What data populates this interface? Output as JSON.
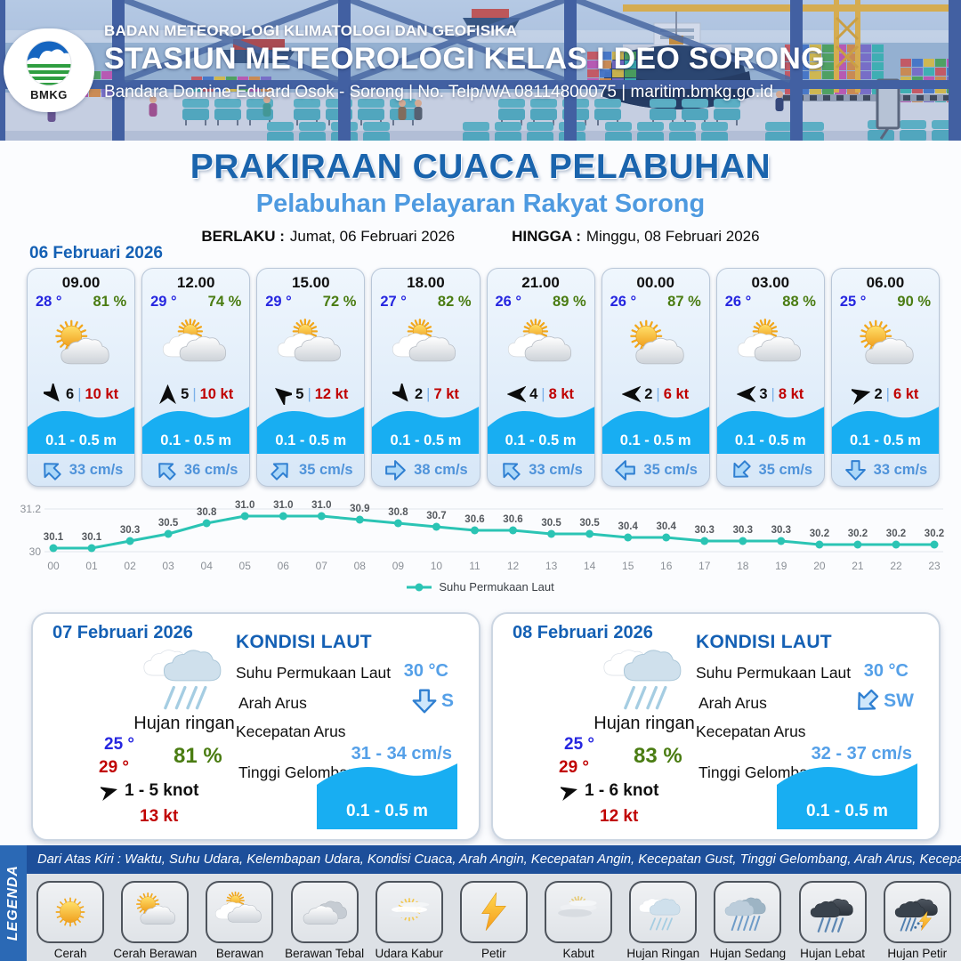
{
  "header": {
    "logo_text": "BMKG",
    "agency": "BADAN METEOROLOGI KLIMATOLOGI DAN GEOFISIKA",
    "station": "STASIUN METEOROLOGI KELAS I DEO SORONG",
    "contact": "Bandara Domine Eduard Osok - Sorong | No. Telp/WA 08114800075 | maritim.bmkg.go.id"
  },
  "title": {
    "main": "PRAKIRAAN CUACA PELABUHAN",
    "sub": "Pelabuhan Pelayaran Rakyat Sorong"
  },
  "validity": {
    "berlaku_label": "BERLAKU :",
    "berlaku": "Jumat, 06 Februari 2026",
    "hingga_label": "HINGGA :",
    "hingga": "Minggu, 08 Februari 2026"
  },
  "hourly": {
    "date": "06 Februari 2026",
    "sep": "|",
    "cards": [
      {
        "time": "09.00",
        "temp": "28 °",
        "humidity": "81 %",
        "icon": "cerah-berawan",
        "wind_deg": 140,
        "wind": "6",
        "gust": "10 kt",
        "wave": "0.1 - 0.5 m",
        "current_deg": -45,
        "current": "33 cm/s"
      },
      {
        "time": "12.00",
        "temp": "29 °",
        "humidity": "74 %",
        "icon": "berawan",
        "wind_deg": 0,
        "wind": "5",
        "gust": "10 kt",
        "wave": "0.1 - 0.5 m",
        "current_deg": -45,
        "current": "36 cm/s"
      },
      {
        "time": "15.00",
        "temp": "29 °",
        "humidity": "72 %",
        "icon": "berawan",
        "wind_deg": -50,
        "wind": "5",
        "gust": "12 kt",
        "wave": "0.1 - 0.5 m",
        "current_deg": 45,
        "current": "35 cm/s"
      },
      {
        "time": "18.00",
        "temp": "27 °",
        "humidity": "82 %",
        "icon": "berawan",
        "wind_deg": 140,
        "wind": "2",
        "gust": "7 kt",
        "wave": "0.1 - 0.5 m",
        "current_deg": 90,
        "current": "38 cm/s"
      },
      {
        "time": "21.00",
        "temp": "26 °",
        "humidity": "89 %",
        "icon": "berawan",
        "wind_deg": -90,
        "wind": "4",
        "gust": "8 kt",
        "wave": "0.1 - 0.5 m",
        "current_deg": -45,
        "current": "33 cm/s"
      },
      {
        "time": "00.00",
        "temp": "26 °",
        "humidity": "87 %",
        "icon": "cerah-berawan",
        "wind_deg": -90,
        "wind": "2",
        "gust": "6 kt",
        "wave": "0.1 - 0.5 m",
        "current_deg": -90,
        "current": "35 cm/s"
      },
      {
        "time": "03.00",
        "temp": "26 °",
        "humidity": "88 %",
        "icon": "berawan",
        "wind_deg": -90,
        "wind": "3",
        "gust": "8 kt",
        "wave": "0.1 - 0.5 m",
        "current_deg": -135,
        "current": "35 cm/s"
      },
      {
        "time": "06.00",
        "temp": "25 °",
        "humidity": "90 %",
        "icon": "cerah-berawan",
        "wind_deg": 75,
        "wind": "2",
        "gust": "6 kt",
        "wave": "0.1 - 0.5 m",
        "current_deg": 180,
        "current": "33 cm/s"
      }
    ]
  },
  "chart_data": {
    "type": "line",
    "x": [
      "00",
      "01",
      "02",
      "03",
      "04",
      "05",
      "06",
      "07",
      "08",
      "09",
      "10",
      "11",
      "12",
      "13",
      "14",
      "15",
      "16",
      "17",
      "18",
      "19",
      "20",
      "21",
      "22",
      "23"
    ],
    "series": [
      {
        "name": "Suhu Permukaan Laut",
        "values": [
          30.1,
          30.1,
          30.3,
          30.5,
          30.8,
          31.0,
          31.0,
          31.0,
          30.9,
          30.8,
          30.7,
          30.6,
          30.6,
          30.5,
          30.5,
          30.4,
          30.4,
          30.3,
          30.3,
          30.3,
          30.2,
          30.2,
          30.2,
          30.2
        ]
      }
    ],
    "color": "#2bc4b4",
    "ylim": [
      30,
      31.2
    ],
    "yticks": [
      "30",
      "31.2"
    ],
    "grid": true,
    "legend_position": "bottom"
  },
  "daily": [
    {
      "date": "07 Februari 2026",
      "icon": "hujan-ringan",
      "condition": "Hujan ringan",
      "temp_min": "25 °",
      "temp_max": "29 °",
      "humidity": "81 %",
      "wind_deg": 75,
      "wind": "1 - 5 knot",
      "gust": "13 kt",
      "sea": {
        "title": "KONDISI LAUT",
        "sst_label": "Suhu Permukaan Laut",
        "sst": "30 °C",
        "current_dir_label": "Arah Arus",
        "current_dir": "S",
        "current_deg": 180,
        "current_speed_label": "Kecepatan Arus",
        "current_speed": "31 - 34 cm/s",
        "wave_label": "Tinggi Gelombang",
        "wave": "0.1 - 0.5 m"
      }
    },
    {
      "date": "08 Februari 2026",
      "icon": "hujan-ringan",
      "condition": "Hujan ringan",
      "temp_min": "25 °",
      "temp_max": "29 °",
      "humidity": "83 %",
      "wind_deg": 75,
      "wind": "1 - 6 knot",
      "gust": "12 kt",
      "sea": {
        "title": "KONDISI LAUT",
        "sst_label": "Suhu Permukaan Laut",
        "sst": "30 °C",
        "current_dir_label": "Arah Arus",
        "current_dir": "SW",
        "current_deg": -135,
        "current_speed_label": "Kecepatan Arus",
        "current_speed": "32 - 37 cm/s",
        "wave_label": "Tinggi Gelombang",
        "wave": "0.1 - 0.5 m"
      }
    }
  ],
  "legend": {
    "ribbon": "LEGENDA",
    "note": "Dari Atas Kiri : Waktu, Suhu Udara, Kelembapan Udara, Kondisi Cuaca, Arah Angin, Kecepatan Angin, Kecepatan Gust, Tinggi Gelombang, Arah Arus, Kecepatan Arus",
    "items": [
      {
        "icon": "cerah",
        "label": "Cerah"
      },
      {
        "icon": "cerah-berawan",
        "label": "Cerah Berawan"
      },
      {
        "icon": "berawan",
        "label": "Berawan"
      },
      {
        "icon": "berawan-tebal",
        "label": "Berawan Tebal"
      },
      {
        "icon": "udara-kabur",
        "label": "Udara Kabur"
      },
      {
        "icon": "petir",
        "label": "Petir"
      },
      {
        "icon": "kabut",
        "label": "Kabut"
      },
      {
        "icon": "hujan-ringan",
        "label": "Hujan Ringan"
      },
      {
        "icon": "hujan-sedang",
        "label": "Hujan Sedang"
      },
      {
        "icon": "hujan-lebat",
        "label": "Hujan Lebat"
      },
      {
        "icon": "hujan-petir",
        "label": "Hujan Petir"
      }
    ]
  },
  "colors": {
    "accent_title": "#1a64ad",
    "accent_sub": "#4e9ae0",
    "date_blue": "#1460b4",
    "temp_blue": "#2626e0",
    "humidity_green": "#4a7c12",
    "gust_red": "#c00000",
    "wave_blue": "#18aef2",
    "current_text": "#4f93da",
    "chart_teal": "#2bc4b4",
    "legend_bar": "#1d4f9a",
    "legend_ribbon": "#2b69b5"
  }
}
